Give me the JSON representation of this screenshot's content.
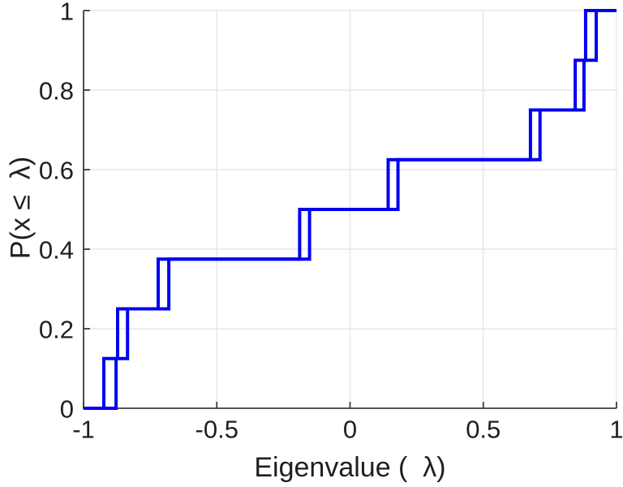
{
  "figure": {
    "background": "#ffffff"
  },
  "chart_data": {
    "type": "line",
    "subtype": "ecdf-step",
    "title": "",
    "xlabel": "Eigenvalue (  λ)",
    "ylabel": "P(x ≤  λ)",
    "xlim": [
      -1,
      1
    ],
    "ylim": [
      0,
      1
    ],
    "xticks": {
      "values": [
        -1,
        -0.5,
        0,
        0.5,
        1
      ],
      "labels": [
        "-1",
        "-0.5",
        "0",
        "0.5",
        "1"
      ]
    },
    "yticks": {
      "values": [
        0,
        0.2,
        0.4,
        0.6,
        0.8,
        1
      ],
      "labels": [
        "0",
        "0.2",
        "0.4",
        "0.6",
        "0.8",
        "1"
      ]
    },
    "grid": "on",
    "legend": "none",
    "colors": {
      "line": "#0000f2",
      "axis": "#3c3c3c",
      "grid": "#e2e2e2",
      "text": "#1f1f1f"
    },
    "cumulative_levels": [
      0,
      0.125,
      0.25,
      0.375,
      0.5,
      0.625,
      0.75,
      0.875,
      1
    ],
    "series": [
      {
        "name": "ecdf-curve-1",
        "step_x": [
          -0.924,
          -0.872,
          -0.72,
          -0.189,
          0.143,
          0.677,
          0.845,
          0.884
        ]
      },
      {
        "name": "ecdf-curve-2",
        "step_x": [
          -0.878,
          -0.835,
          -0.68,
          -0.152,
          0.18,
          0.713,
          0.878,
          0.924
        ]
      }
    ]
  }
}
